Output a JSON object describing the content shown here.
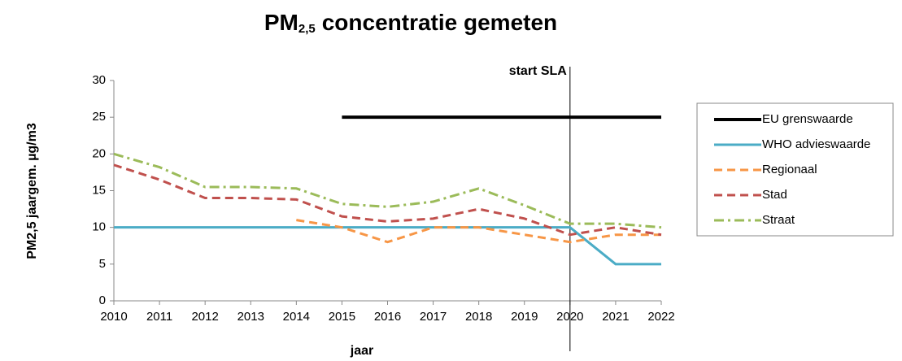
{
  "chart_data": {
    "type": "line",
    "title": {
      "prefix": "PM",
      "subscript": "2,5",
      "rest": "concentratie gemeten"
    },
    "xlabel": "jaar",
    "ylabel": "PM2,5 jaargem. µg/m3",
    "x": [
      2010,
      2011,
      2012,
      2013,
      2014,
      2015,
      2016,
      2017,
      2018,
      2019,
      2020,
      2021,
      2022
    ],
    "xlim": [
      2010,
      2022
    ],
    "xticks": [
      2010,
      2011,
      2012,
      2013,
      2014,
      2015,
      2016,
      2017,
      2018,
      2019,
      2020,
      2021,
      2022
    ],
    "ylim": [
      0,
      30
    ],
    "yticks": [
      0,
      5,
      10,
      15,
      20,
      25,
      30
    ],
    "annotation": {
      "text": "start SLA",
      "x": 2020
    },
    "legend": "right",
    "series": [
      {
        "name": "EU grenswaarde",
        "color": "#000000",
        "dash": "solid",
        "values": [
          null,
          null,
          null,
          null,
          null,
          25,
          25,
          25,
          25,
          25,
          25,
          25,
          25
        ]
      },
      {
        "name": "WHO advieswaarde",
        "color": "#4bacc6",
        "dash": "solid",
        "values": [
          10,
          10,
          10,
          10,
          10,
          10,
          10,
          10,
          10,
          10,
          10,
          5,
          5
        ]
      },
      {
        "name": "Regionaal",
        "color": "#f79646",
        "dash": "dashed",
        "values": [
          null,
          null,
          null,
          null,
          11,
          10,
          8,
          10,
          10,
          9,
          8,
          9,
          9
        ]
      },
      {
        "name": "Stad",
        "color": "#c0504d",
        "dash": "dashed",
        "values": [
          18.5,
          16.5,
          14,
          14,
          13.8,
          11.5,
          10.8,
          11.2,
          12.5,
          11.2,
          9,
          10,
          9
        ]
      },
      {
        "name": "Straat",
        "color": "#9bbb59",
        "dash": "dashdot",
        "values": [
          20,
          18.2,
          15.5,
          15.5,
          15.3,
          13.2,
          12.8,
          13.5,
          15.3,
          13,
          10.5,
          10.5,
          10
        ]
      }
    ]
  }
}
